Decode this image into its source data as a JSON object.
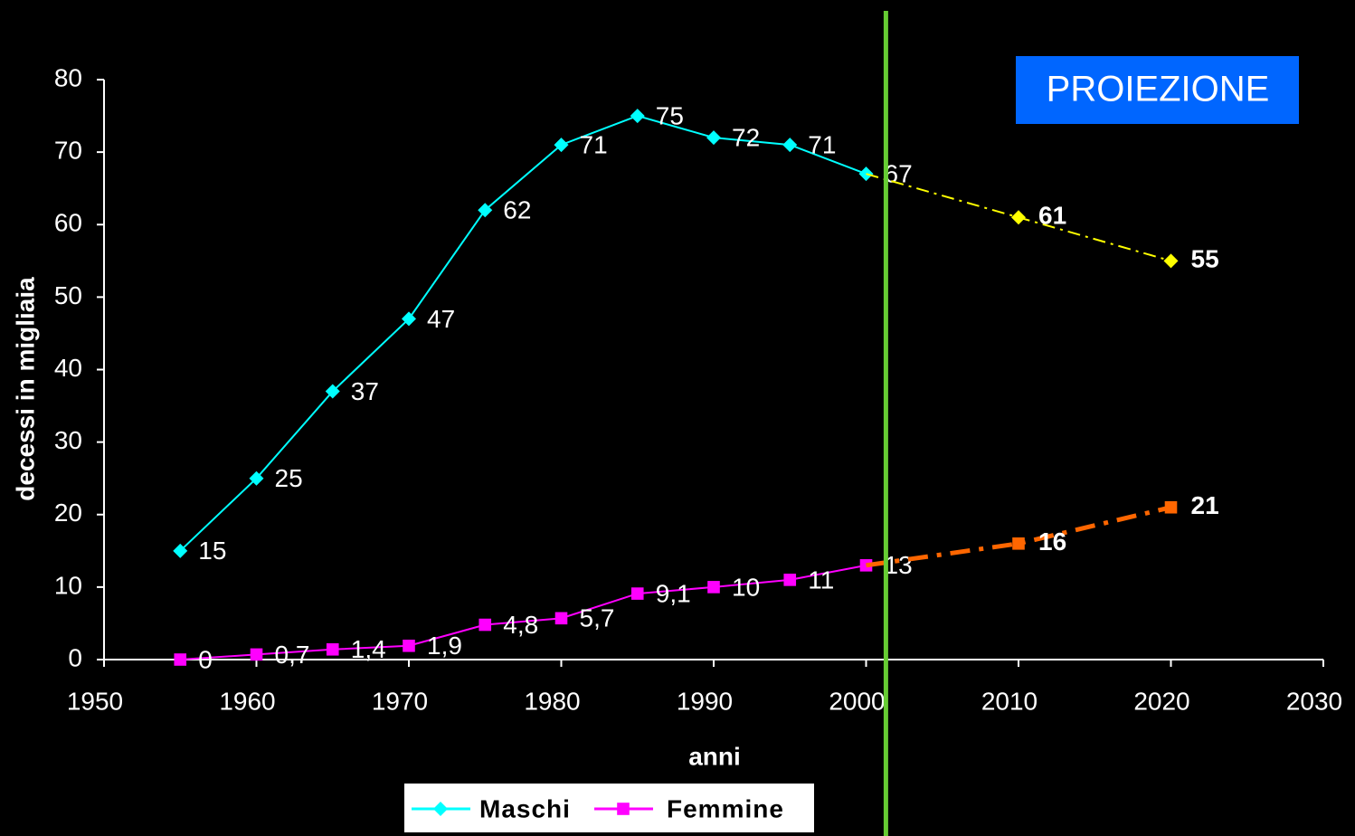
{
  "chart_data": {
    "type": "line",
    "x_label": "anni",
    "y_label": "decessi in migliaia",
    "x": [
      1955,
      1960,
      1965,
      1970,
      1975,
      1980,
      1985,
      1990,
      1995,
      2000
    ],
    "series": [
      {
        "name": "Maschi",
        "color": "#00ffff",
        "marker": "diamond",
        "values": [
          15,
          25,
          37,
          47,
          62,
          71,
          75,
          72,
          71,
          67
        ]
      },
      {
        "name": "Femmine",
        "color": "#ff00ff",
        "marker": "square",
        "values": [
          0,
          0.7,
          1.4,
          1.9,
          4.8,
          5.7,
          9.1,
          10,
          11,
          13
        ],
        "value_labels": [
          "0",
          "0,7",
          "1,4",
          "1,9",
          "4,8",
          "5,7",
          "9,1",
          "10",
          "11",
          "13"
        ]
      }
    ],
    "projections": [
      {
        "color": "#ffff00",
        "marker": "diamond",
        "x": [
          2010,
          2020
        ],
        "values": [
          61,
          55
        ]
      },
      {
        "color": "#ff6600",
        "marker": "square",
        "x": [
          2010,
          2020
        ],
        "values": [
          16,
          21
        ]
      }
    ],
    "annotation": "PROIEZIONE",
    "vline": {
      "x": 2001.3,
      "color": "#66cc33"
    },
    "xlim": [
      1950,
      2030
    ],
    "xticks": [
      1950,
      1960,
      1970,
      1980,
      1990,
      2000,
      2010,
      2020,
      2030
    ],
    "ylim": [
      0,
      80
    ],
    "yticks": [
      0,
      10,
      20,
      30,
      40,
      50,
      60,
      70,
      80
    ]
  }
}
